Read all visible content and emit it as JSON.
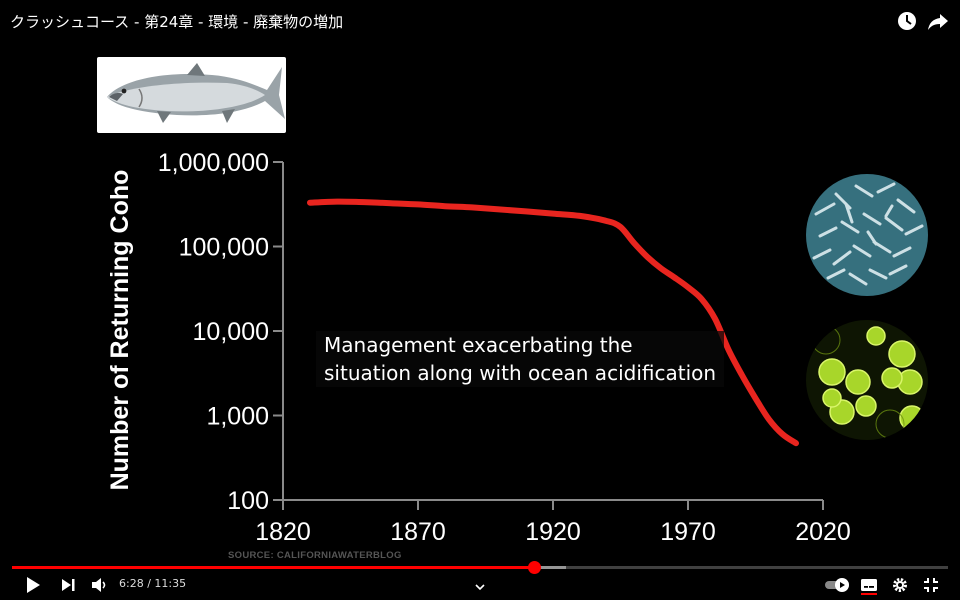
{
  "video": {
    "title": "クラッシュコース - 第24章 - 環境 - 廃棄物の増加"
  },
  "icons": {
    "watch_later": "clock-icon",
    "share": "share-arrow-icon",
    "play": "play-icon",
    "next": "skip-next-icon",
    "volume": "volume-icon",
    "chapters": "chevron-down-icon",
    "autoplay": "autoplay-toggle-icon",
    "captions": "subtitles-icon",
    "settings": "gear-icon",
    "exit_fullscreen": "exit-fullscreen-icon"
  },
  "caption": {
    "line1": "Management exacerbating the",
    "line2": "situation along with ocean acidification"
  },
  "chart_data": {
    "type": "line",
    "title": "",
    "xlabel": "",
    "ylabel": "Number of Returning Coho",
    "yscale": "log",
    "xlim": [
      1820,
      2020
    ],
    "ylim": [
      100,
      1000000
    ],
    "x_ticks": [
      "1820",
      "1870",
      "1920",
      "1970",
      "2020"
    ],
    "y_ticks": [
      "100",
      "1,000",
      "10,000",
      "100,000",
      "1,000,000"
    ],
    "series": [
      {
        "color": "#e8251f",
        "x": [
          1830,
          1840,
          1850,
          1860,
          1870,
          1880,
          1890,
          1900,
          1910,
          1920,
          1930,
          1940,
          1945,
          1950,
          1955,
          1960,
          1965,
          1970,
          1975,
          1980,
          1985,
          1990,
          1995,
          2000,
          2005,
          2010
        ],
        "y": [
          330000,
          340000,
          335000,
          325000,
          315000,
          300000,
          290000,
          275000,
          260000,
          245000,
          230000,
          200000,
          170000,
          110000,
          75000,
          55000,
          43000,
          33000,
          24000,
          14000,
          6000,
          3000,
          1600,
          900,
          600,
          470
        ]
      }
    ],
    "source": "SOURCE: CALIFORNIAWATERBLOG",
    "grid": false
  },
  "player": {
    "current_time": "6:28",
    "separator": " / ",
    "duration": "11:35",
    "progress_fraction": 0.558,
    "buffered_fraction": 0.592,
    "progress_color": "#ff0000"
  }
}
